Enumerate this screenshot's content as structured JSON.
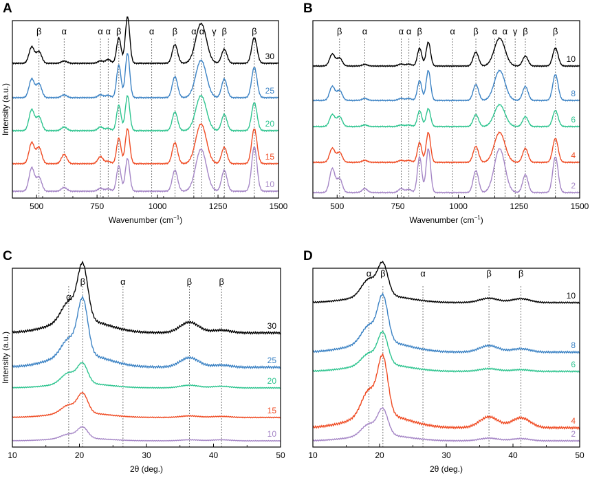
{
  "colors": {
    "black": "#000000",
    "blue": "#3b82c4",
    "teal": "#2ec48f",
    "orange": "#ef4b23",
    "purple": "#a586c6"
  },
  "chart_data": [
    {
      "panel": "A",
      "type": "line",
      "title": "",
      "xlabel": "Wavenumber (cm",
      "xlabel_sup": "−1",
      "xlabel_tail": ")",
      "ylabel": "Intensity (a.u.)",
      "xlim": [
        400,
        1500
      ],
      "xticks": [
        500,
        750,
        1000,
        1250,
        1500
      ],
      "ref_lines": [
        {
          "x": 510,
          "label": "β"
        },
        {
          "x": 614,
          "label": "α"
        },
        {
          "x": 764,
          "label": "α"
        },
        {
          "x": 796,
          "label": "α"
        },
        {
          "x": 840,
          "label": "β"
        },
        {
          "x": 976,
          "label": "α"
        },
        {
          "x": 1072,
          "label": "β"
        },
        {
          "x": 1150,
          "label": "α"
        },
        {
          "x": 1183,
          "label": "α"
        },
        {
          "x": 1234,
          "label": "γ"
        },
        {
          "x": 1276,
          "label": "β"
        },
        {
          "x": 1400,
          "label": "β"
        }
      ],
      "series": [
        {
          "name": "30",
          "color": "#000000",
          "peaks": [
            [
              480,
              0.35
            ],
            [
              510,
              0.25
            ],
            [
              614,
              0.05
            ],
            [
              764,
              0.05
            ],
            [
              796,
              0.08
            ],
            [
              840,
              0.55
            ],
            [
              876,
              1.0
            ],
            [
              1072,
              0.4
            ],
            [
              1180,
              0.85
            ],
            [
              1276,
              0.3
            ],
            [
              1400,
              0.55
            ]
          ]
        },
        {
          "name": "25",
          "color": "#3b82c4",
          "peaks": [
            [
              480,
              0.4
            ],
            [
              510,
              0.3
            ],
            [
              614,
              0.06
            ],
            [
              764,
              0.06
            ],
            [
              796,
              0.05
            ],
            [
              840,
              0.7
            ],
            [
              876,
              0.95
            ],
            [
              1072,
              0.45
            ],
            [
              1180,
              0.8
            ],
            [
              1276,
              0.4
            ],
            [
              1400,
              0.65
            ]
          ]
        },
        {
          "name": "20",
          "color": "#2ec48f",
          "peaks": [
            [
              480,
              0.45
            ],
            [
              510,
              0.3
            ],
            [
              614,
              0.08
            ],
            [
              764,
              0.08
            ],
            [
              796,
              0.05
            ],
            [
              840,
              0.55
            ],
            [
              876,
              0.75
            ],
            [
              1072,
              0.4
            ],
            [
              1180,
              0.75
            ],
            [
              1276,
              0.35
            ],
            [
              1400,
              0.6
            ]
          ]
        },
        {
          "name": "15",
          "color": "#ef4b23",
          "peaks": [
            [
              480,
              0.45
            ],
            [
              510,
              0.35
            ],
            [
              614,
              0.2
            ],
            [
              764,
              0.15
            ],
            [
              796,
              0.05
            ],
            [
              840,
              0.55
            ],
            [
              876,
              0.75
            ],
            [
              1072,
              0.45
            ],
            [
              1180,
              0.85
            ],
            [
              1276,
              0.35
            ],
            [
              1400,
              0.75
            ]
          ]
        },
        {
          "name": "10",
          "color": "#a586c6",
          "peaks": [
            [
              480,
              0.5
            ],
            [
              510,
              0.3
            ],
            [
              614,
              0.08
            ],
            [
              764,
              0.06
            ],
            [
              796,
              0.05
            ],
            [
              840,
              0.55
            ],
            [
              876,
              0.7
            ],
            [
              1072,
              0.45
            ],
            [
              1180,
              0.9
            ],
            [
              1276,
              0.45
            ],
            [
              1400,
              0.95
            ]
          ]
        }
      ]
    },
    {
      "panel": "B",
      "type": "line",
      "title": "",
      "xlabel": "Wavenumber (cm",
      "xlabel_sup": "−1",
      "xlabel_tail": ")",
      "ylabel": "",
      "xlim": [
        400,
        1500
      ],
      "xticks": [
        500,
        750,
        1000,
        1250,
        1500
      ],
      "ref_lines": [
        {
          "x": 510,
          "label": "β"
        },
        {
          "x": 614,
          "label": "α"
        },
        {
          "x": 764,
          "label": "α"
        },
        {
          "x": 796,
          "label": "α"
        },
        {
          "x": 840,
          "label": "β"
        },
        {
          "x": 976,
          "label": "α"
        },
        {
          "x": 1072,
          "label": "β"
        },
        {
          "x": 1150,
          "label": "α"
        },
        {
          "x": 1192,
          "label": "α"
        },
        {
          "x": 1234,
          "label": "γ"
        },
        {
          "x": 1276,
          "label": "β"
        },
        {
          "x": 1400,
          "label": "β"
        }
      ],
      "series": [
        {
          "name": "10",
          "color": "#000000",
          "peaks": [
            [
              480,
              0.3
            ],
            [
              510,
              0.2
            ],
            [
              614,
              0.04
            ],
            [
              764,
              0.05
            ],
            [
              796,
              0.05
            ],
            [
              840,
              0.45
            ],
            [
              876,
              0.6
            ],
            [
              1072,
              0.35
            ],
            [
              1170,
              0.7
            ],
            [
              1276,
              0.25
            ],
            [
              1400,
              0.45
            ]
          ]
        },
        {
          "name": "8",
          "color": "#3b82c4",
          "peaks": [
            [
              480,
              0.35
            ],
            [
              510,
              0.25
            ],
            [
              614,
              0.05
            ],
            [
              764,
              0.05
            ],
            [
              796,
              0.05
            ],
            [
              840,
              0.5
            ],
            [
              876,
              0.75
            ],
            [
              1072,
              0.4
            ],
            [
              1170,
              0.75
            ],
            [
              1276,
              0.35
            ],
            [
              1400,
              0.65
            ]
          ]
        },
        {
          "name": "6",
          "color": "#2ec48f",
          "peaks": [
            [
              480,
              0.3
            ],
            [
              510,
              0.25
            ],
            [
              614,
              0.04
            ],
            [
              764,
              0.04
            ],
            [
              796,
              0.04
            ],
            [
              840,
              0.4
            ],
            [
              876,
              0.45
            ],
            [
              1072,
              0.3
            ],
            [
              1170,
              0.55
            ],
            [
              1276,
              0.25
            ],
            [
              1400,
              0.4
            ]
          ]
        },
        {
          "name": "4",
          "color": "#ef4b23",
          "peaks": [
            [
              480,
              0.35
            ],
            [
              510,
              0.25
            ],
            [
              614,
              0.05
            ],
            [
              764,
              0.05
            ],
            [
              796,
              0.05
            ],
            [
              840,
              0.5
            ],
            [
              876,
              0.75
            ],
            [
              1072,
              0.4
            ],
            [
              1170,
              0.75
            ],
            [
              1276,
              0.35
            ],
            [
              1400,
              0.6
            ]
          ]
        },
        {
          "name": "2",
          "color": "#a586c6",
          "peaks": [
            [
              480,
              0.6
            ],
            [
              510,
              0.35
            ],
            [
              614,
              0.1
            ],
            [
              764,
              0.1
            ],
            [
              796,
              0.08
            ],
            [
              840,
              0.9
            ],
            [
              876,
              1.1
            ],
            [
              1072,
              0.55
            ],
            [
              1170,
              1.1
            ],
            [
              1276,
              0.45
            ],
            [
              1400,
              0.9
            ]
          ]
        }
      ]
    },
    {
      "panel": "C",
      "type": "line",
      "title": "",
      "xlabel": "2θ (deg.)",
      "ylabel": "Intensity (a.u.)",
      "xlim": [
        10,
        50
      ],
      "xticks": [
        10,
        20,
        30,
        40,
        50
      ],
      "ref_lines": [
        {
          "x": 18.4,
          "label": "α"
        },
        {
          "x": 20.5,
          "label": "β"
        },
        {
          "x": 26.5,
          "label": "α"
        },
        {
          "x": 36.4,
          "label": "β"
        },
        {
          "x": 41.2,
          "label": "β"
        }
      ],
      "series": [
        {
          "name": "30",
          "color": "#000000",
          "peaks": [
            [
              18.4,
              0.35
            ],
            [
              20.5,
              1.0
            ],
            [
              36.4,
              0.2
            ],
            [
              41.2,
              0.05
            ]
          ]
        },
        {
          "name": "25",
          "color": "#3b82c4",
          "peaks": [
            [
              18.4,
              0.3
            ],
            [
              20.5,
              1.0
            ],
            [
              36.4,
              0.18
            ],
            [
              41.2,
              0.04
            ]
          ]
        },
        {
          "name": "20",
          "color": "#2ec48f",
          "peaks": [
            [
              18.4,
              0.2
            ],
            [
              20.5,
              0.35
            ],
            [
              36.4,
              0.05
            ],
            [
              41.2,
              0.03
            ]
          ]
        },
        {
          "name": "15",
          "color": "#ef4b23",
          "peaks": [
            [
              18.4,
              0.15
            ],
            [
              20.5,
              0.35
            ],
            [
              36.4,
              0.03
            ],
            [
              41.2,
              0.02
            ]
          ]
        },
        {
          "name": "10",
          "color": "#a586c6",
          "peaks": [
            [
              18.4,
              0.08
            ],
            [
              20.5,
              0.2
            ],
            [
              36.4,
              0.02
            ],
            [
              41.2,
              0.02
            ]
          ]
        }
      ]
    },
    {
      "panel": "D",
      "type": "line",
      "title": "",
      "xlabel": "2θ (deg.)",
      "ylabel": "",
      "xlim": [
        10,
        50
      ],
      "xticks": [
        10,
        20,
        30,
        40,
        50
      ],
      "ref_lines": [
        {
          "x": 18.4,
          "label": "α"
        },
        {
          "x": 20.5,
          "label": "β"
        },
        {
          "x": 26.5,
          "label": "α"
        },
        {
          "x": 36.4,
          "label": "β"
        },
        {
          "x": 41.2,
          "label": "β"
        }
      ],
      "series": [
        {
          "name": "10",
          "color": "#000000",
          "peaks": [
            [
              18.4,
              0.3
            ],
            [
              20.5,
              0.55
            ],
            [
              36.4,
              0.08
            ],
            [
              41.2,
              0.07
            ]
          ]
        },
        {
          "name": "8",
          "color": "#3b82c4",
          "peaks": [
            [
              18.4,
              0.3
            ],
            [
              20.5,
              0.8
            ],
            [
              36.4,
              0.12
            ],
            [
              41.2,
              0.06
            ]
          ]
        },
        {
          "name": "6",
          "color": "#2ec48f",
          "peaks": [
            [
              18.4,
              0.2
            ],
            [
              20.5,
              0.55
            ],
            [
              36.4,
              0.05
            ],
            [
              41.2,
              0.03
            ]
          ]
        },
        {
          "name": "4",
          "color": "#ef4b23",
          "peaks": [
            [
              18.4,
              0.45
            ],
            [
              20.5,
              1.0
            ],
            [
              36.4,
              0.2
            ],
            [
              41.2,
              0.18
            ]
          ]
        },
        {
          "name": "2",
          "color": "#a586c6",
          "peaks": [
            [
              18.4,
              0.2
            ],
            [
              20.5,
              0.45
            ],
            [
              36.4,
              0.05
            ],
            [
              41.2,
              0.04
            ]
          ]
        }
      ]
    }
  ]
}
